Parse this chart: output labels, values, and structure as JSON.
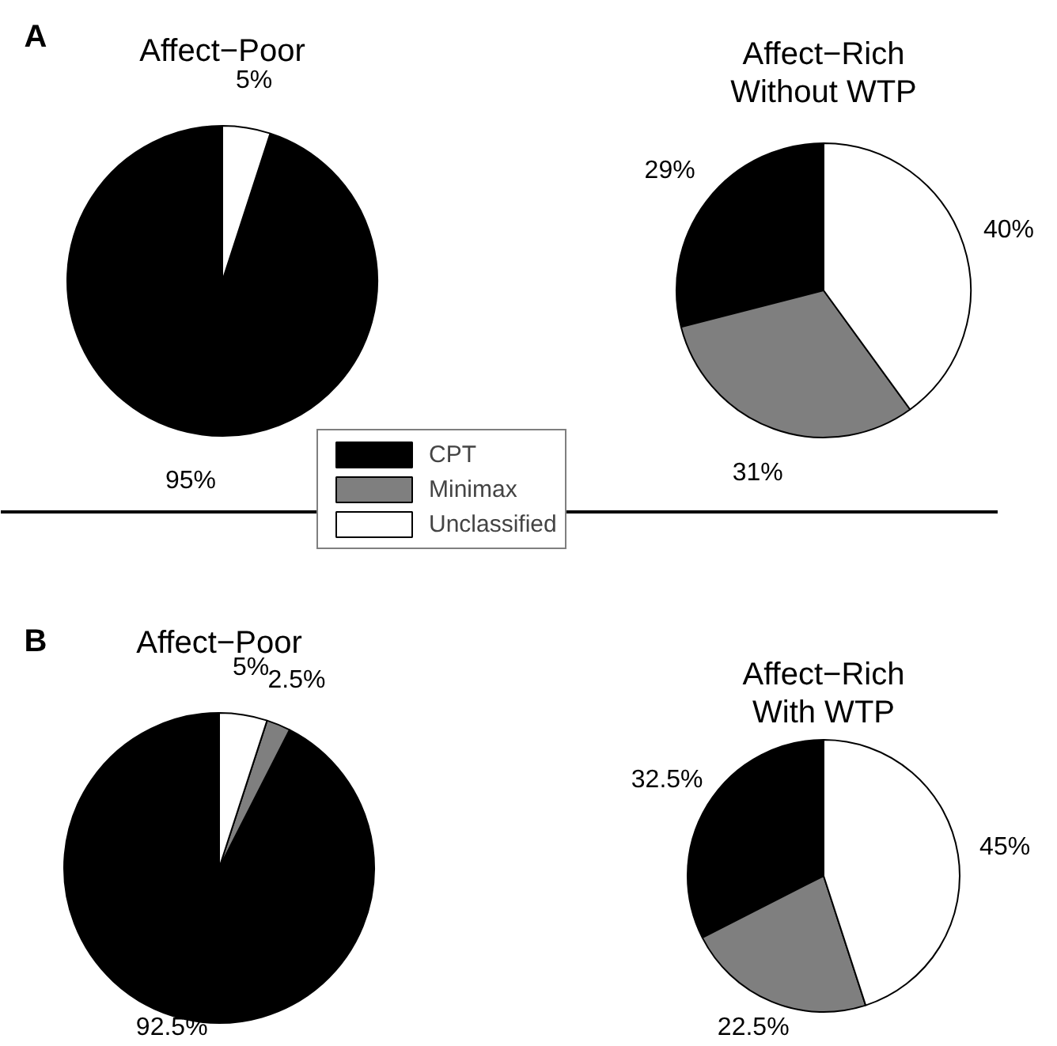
{
  "chart_data": [
    {
      "type": "pie",
      "title": "Affect−Poor",
      "categories": [
        "CPT",
        "Minimax",
        "Unclassified"
      ],
      "values": [
        95,
        0,
        5
      ],
      "value_labels": [
        "95%",
        null,
        "5%"
      ],
      "colors": [
        "#000000",
        "#7f7f7f",
        "#ffffff"
      ],
      "legend": "bottom",
      "annotations": [
        "A"
      ]
    },
    {
      "type": "pie",
      "title": "Affect−Rich\nWithout WTP",
      "categories": [
        null,
        null,
        null
      ],
      "values": [
        29,
        31,
        40
      ],
      "value_labels": [
        "29%",
        "31%",
        "40%"
      ],
      "colors": [
        "#000000",
        "#7f7f7f",
        "#ffffff"
      ]
    },
    {
      "type": "pie",
      "title": "Affect−Poor",
      "categories": [
        null,
        null,
        null
      ],
      "values": [
        92.5,
        2.5,
        5
      ],
      "value_labels": [
        "92.5%",
        "2.5%",
        "5%"
      ],
      "colors": [
        "#000000",
        "#7f7f7f",
        "#ffffff"
      ],
      "annotations": [
        "B"
      ]
    },
    {
      "type": "pie",
      "title": "Affect−Rich\nWith WTP",
      "categories": [
        null,
        null,
        null
      ],
      "values": [
        32.5,
        22.5,
        45
      ],
      "value_labels": [
        "32.5%",
        "22.5%",
        "45%"
      ],
      "colors": [
        "#000000",
        "#7f7f7f",
        "#ffffff"
      ]
    }
  ]
}
